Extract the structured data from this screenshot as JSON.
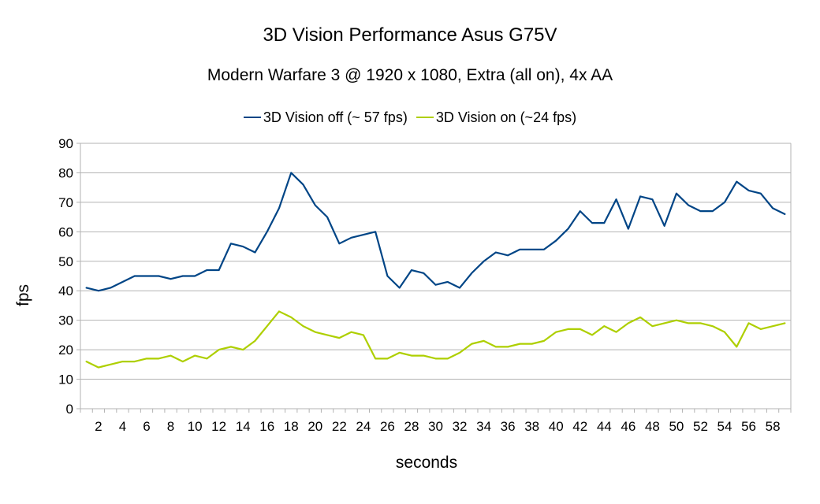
{
  "chart_data": {
    "type": "line",
    "title": "3D Vision Performance Asus G75V",
    "subtitle": "Modern Warfare 3 @ 1920 x 1080, Extra (all on), 4x AA",
    "xlabel": "seconds",
    "ylabel": "fps",
    "ylim": [
      0,
      90
    ],
    "yticks": [
      0,
      10,
      20,
      30,
      40,
      50,
      60,
      70,
      80,
      90
    ],
    "x": [
      1,
      2,
      3,
      4,
      5,
      6,
      7,
      8,
      9,
      10,
      11,
      12,
      13,
      14,
      15,
      16,
      17,
      18,
      19,
      20,
      21,
      22,
      23,
      24,
      25,
      26,
      27,
      28,
      29,
      30,
      31,
      32,
      33,
      34,
      35,
      36,
      37,
      38,
      39,
      40,
      41,
      42,
      43,
      44,
      45,
      46,
      47,
      48,
      49,
      50,
      51,
      52,
      53,
      54,
      55,
      56,
      57,
      58,
      59
    ],
    "xtick_labels": [
      "2",
      "4",
      "6",
      "8",
      "10",
      "12",
      "14",
      "16",
      "18",
      "20",
      "22",
      "24",
      "26",
      "28",
      "30",
      "32",
      "34",
      "36",
      "38",
      "40",
      "42",
      "44",
      "46",
      "48",
      "50",
      "52",
      "54",
      "56",
      "58"
    ],
    "grid": true,
    "legend_position": "top",
    "series": [
      {
        "name": "3D Vision off (~ 57 fps)",
        "color": "#004586",
        "values": [
          41,
          40,
          41,
          43,
          45,
          45,
          45,
          44,
          45,
          45,
          47,
          47,
          56,
          55,
          53,
          60,
          68,
          80,
          76,
          69,
          65,
          56,
          58,
          59,
          60,
          45,
          41,
          47,
          46,
          42,
          43,
          41,
          46,
          50,
          53,
          52,
          54,
          54,
          54,
          57,
          61,
          67,
          63,
          63,
          71,
          61,
          72,
          71,
          62,
          73,
          69,
          67,
          67,
          70,
          77,
          74,
          73,
          68,
          66
        ]
      },
      {
        "name": "3D Vision on (~24 fps)",
        "color": "#aecf00",
        "values": [
          16,
          14,
          15,
          16,
          16,
          17,
          17,
          18,
          16,
          18,
          17,
          20,
          21,
          20,
          23,
          28,
          33,
          31,
          28,
          26,
          25,
          24,
          26,
          25,
          17,
          17,
          19,
          18,
          18,
          17,
          17,
          19,
          22,
          23,
          21,
          21,
          22,
          22,
          23,
          26,
          27,
          27,
          25,
          28,
          26,
          29,
          31,
          28,
          29,
          30,
          29,
          29,
          28,
          26,
          21,
          29,
          27,
          28,
          29
        ]
      }
    ]
  }
}
